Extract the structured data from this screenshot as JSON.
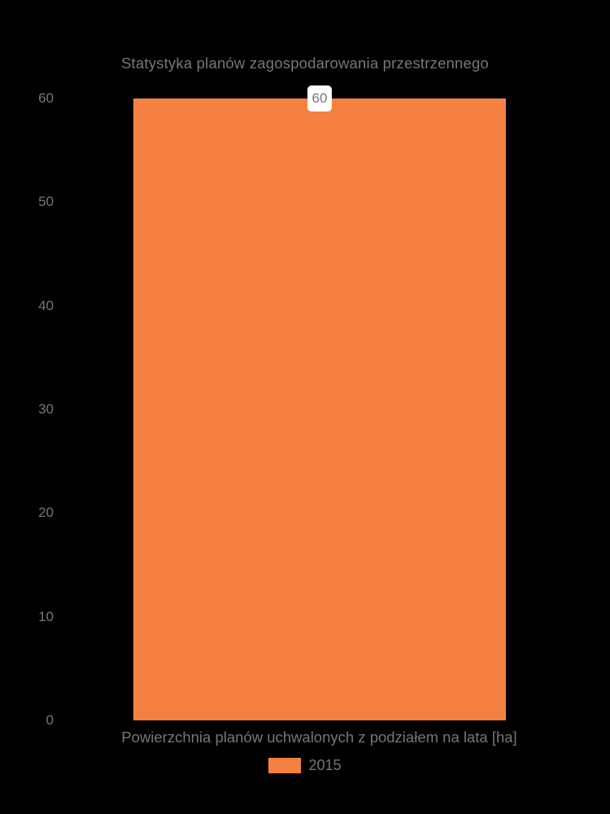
{
  "chart_data": {
    "type": "bar",
    "title": "Statystyka planów zagospodarowania przestrzennego",
    "xlabel": "Powierzchnia planów uchwalonych z podziałem na lata [ha]",
    "ylabel": "",
    "categories": [
      "2015"
    ],
    "series": [
      {
        "name": "2015",
        "values": [
          60
        ],
        "color": "#F4813F"
      }
    ],
    "values": [
      60
    ],
    "value_labels": [
      "60"
    ],
    "ylim": [
      0,
      60
    ],
    "yticks": [
      0,
      10,
      20,
      30,
      40,
      50,
      60
    ],
    "grid": false,
    "legend_position": "bottom",
    "colors": {
      "bar": "#F4813F",
      "background": "#000000",
      "text": "#76777B",
      "value_label_bg": "#FFFFFF"
    }
  }
}
